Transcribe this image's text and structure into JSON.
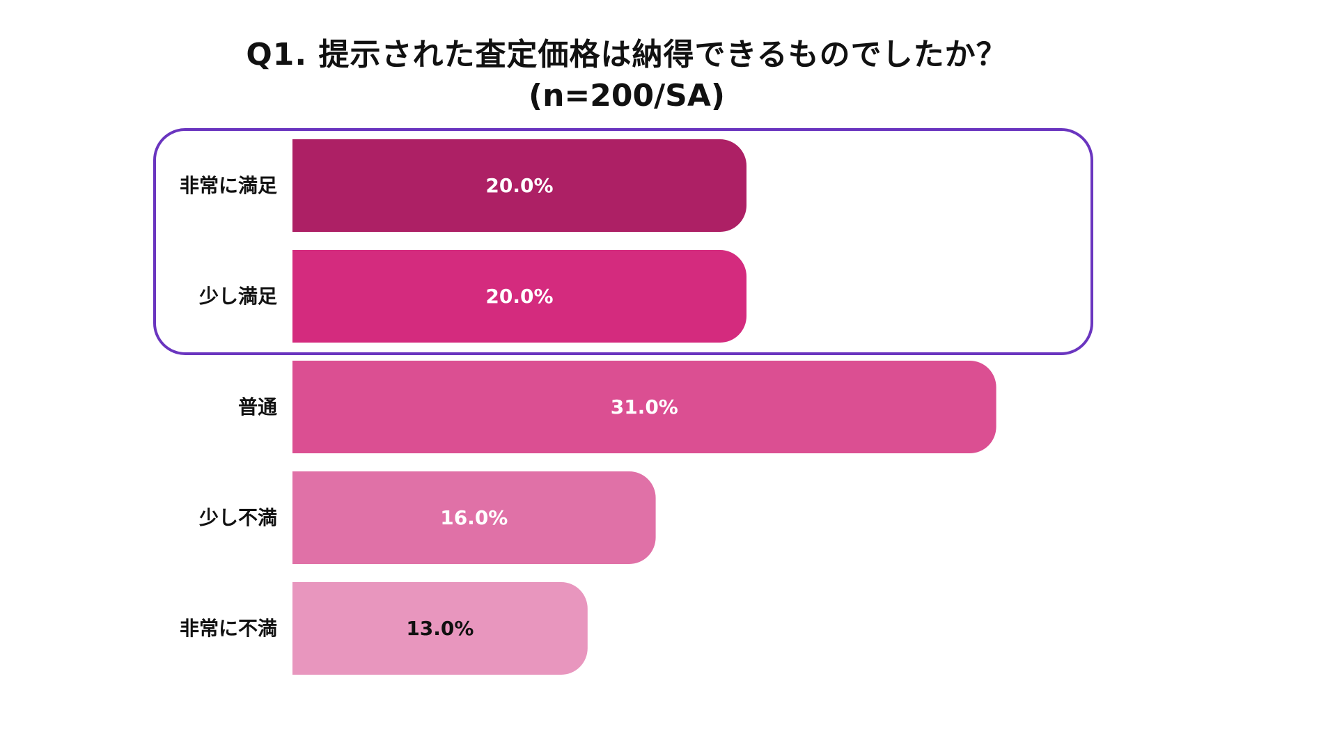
{
  "chart_data": {
    "type": "bar",
    "orientation": "horizontal",
    "title": "Q1. 提示された査定価格は納得できるものでしたか？",
    "subtitle": "(n=200/SA)",
    "categories": [
      "非常に満足",
      "少し満足",
      "普通",
      "少し不満",
      "非常に不満"
    ],
    "values": [
      20.0,
      20.0,
      31.0,
      16.0,
      13.0
    ],
    "value_labels": [
      "20.0%",
      "20.0%",
      "31.0%",
      "16.0%",
      "13.0%"
    ],
    "unit": "%",
    "xlim": [
      0,
      31
    ],
    "grid": false,
    "legend": "none",
    "bar_colors": [
      "#ad2065",
      "#d42b7e",
      "#db4f92",
      "#e071a7",
      "#e896be"
    ],
    "value_label_colors": [
      "#ffffff",
      "#ffffff",
      "#ffffff",
      "#ffffff",
      "#111111"
    ],
    "highlight": {
      "categories": [
        "非常に満足",
        "少し満足"
      ],
      "color": "#6a35bf"
    }
  }
}
